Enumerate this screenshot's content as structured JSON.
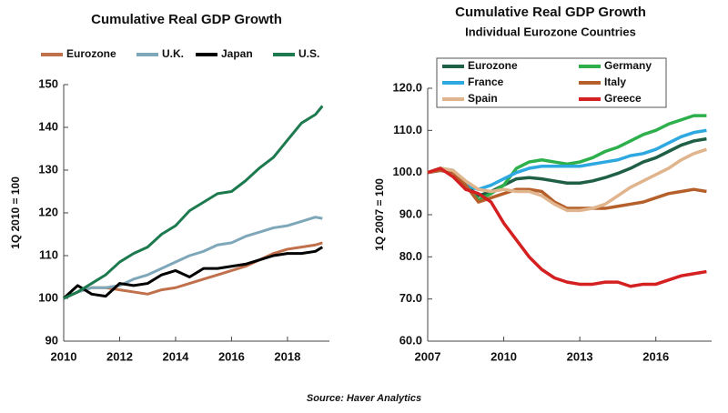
{
  "chart_data": [
    {
      "type": "line",
      "title": "Cumulative Real GDP Growth",
      "ylabel": "1Q 2010 = 100",
      "legend": "top",
      "x": [
        2010,
        2010.5,
        2011,
        2011.5,
        2012,
        2012.5,
        2013,
        2013.5,
        2014,
        2014.5,
        2015,
        2015.5,
        2016,
        2016.5,
        2017,
        2017.5,
        2018,
        2018.5,
        2019,
        2019.25
      ],
      "xlim": [
        2010,
        2019.5
      ],
      "xticks": [
        2010,
        2012,
        2014,
        2016,
        2018
      ],
      "ylim": [
        90,
        150
      ],
      "yticks": [
        90,
        100,
        110,
        120,
        130,
        140,
        150
      ],
      "grid": false,
      "series": [
        {
          "name": "Eurozone",
          "color": "#c0704a",
          "values": [
            100,
            101.5,
            102.5,
            102.5,
            102,
            101.5,
            101,
            102,
            102.5,
            103.5,
            104.5,
            105.5,
            106.5,
            107.5,
            109,
            110.5,
            111.5,
            112,
            112.5,
            113
          ]
        },
        {
          "name": "U.K.",
          "color": "#7fa7ba",
          "values": [
            100,
            101.5,
            102.5,
            102.5,
            103,
            104.5,
            105.5,
            107,
            108.5,
            110,
            111,
            112.5,
            113,
            114.5,
            115.5,
            116.5,
            117,
            118,
            119,
            118.7
          ]
        },
        {
          "name": "Japan",
          "color": "#000000",
          "values": [
            100,
            103,
            101,
            100.5,
            103.5,
            103,
            103.5,
            105.5,
            106.5,
            105,
            107,
            107,
            107.5,
            108,
            109,
            110,
            110.5,
            110.5,
            111,
            112
          ]
        },
        {
          "name": "U.S.",
          "color": "#1d7a4f",
          "values": [
            100,
            101.5,
            103.5,
            105.5,
            108.5,
            110.5,
            112,
            115,
            117,
            120.5,
            122.5,
            124.5,
            125,
            127.5,
            130.5,
            133,
            137,
            141,
            143,
            145
          ]
        }
      ]
    },
    {
      "type": "line",
      "title": "Cumulative Real GDP Growth",
      "subtitle": "Individual Eurozone Countries",
      "ylabel": "1Q 2007 = 100",
      "legend": "top-left",
      "x": [
        2007,
        2007.5,
        2008,
        2008.5,
        2009,
        2009.5,
        2010,
        2010.5,
        2011,
        2011.5,
        2012,
        2012.5,
        2013,
        2013.5,
        2014,
        2014.5,
        2015,
        2015.5,
        2016,
        2016.5,
        2017,
        2017.5,
        2018
      ],
      "xlim": [
        2007,
        2018.2
      ],
      "xticks": [
        2007,
        2010,
        2013,
        2016
      ],
      "ylim": [
        60,
        120
      ],
      "yticks": [
        {
          "value": 60,
          "label": "60.0"
        },
        {
          "value": 70,
          "label": "70.0"
        },
        {
          "value": 80,
          "label": "80.0"
        },
        {
          "value": 90,
          "label": "90.0"
        },
        {
          "value": 100,
          "label": "100.0"
        },
        {
          "value": 110,
          "label": "110.0"
        },
        {
          "value": 120,
          "label": "120.0"
        }
      ],
      "grid": false,
      "series": [
        {
          "name": "Eurozone",
          "color": "#1f5f46",
          "values": [
            100,
            100.8,
            100.5,
            97,
            94.5,
            95.5,
            97,
            98.5,
            98.8,
            98.5,
            98,
            97.5,
            97.5,
            98,
            98.8,
            99.8,
            101,
            102.5,
            103.5,
            105,
            106.5,
            107.5,
            108
          ]
        },
        {
          "name": "Germany",
          "color": "#2db04b",
          "values": [
            100,
            101,
            100.5,
            97,
            93.5,
            95,
            97,
            101,
            102.5,
            103,
            102.5,
            102,
            102.5,
            103.5,
            105,
            106,
            107.5,
            109,
            110,
            111.5,
            112.5,
            113.5,
            113.5
          ]
        },
        {
          "name": "France",
          "color": "#2ea8e0",
          "values": [
            100,
            100.5,
            100,
            97,
            96,
            97,
            98.5,
            100,
            101,
            101.5,
            101.5,
            101.5,
            101.5,
            102,
            102.5,
            103,
            104,
            104.5,
            105.5,
            107,
            108.5,
            109.5,
            110
          ]
        },
        {
          "name": "Italy",
          "color": "#b5602a",
          "values": [
            100,
            100.5,
            100,
            97,
            93,
            94,
            95,
            96,
            96,
            95.5,
            93,
            91.5,
            91.5,
            91.5,
            91.5,
            92,
            92.5,
            93,
            94,
            95,
            95.5,
            96,
            95.5
          ]
        },
        {
          "name": "Spain",
          "color": "#e0b48c",
          "values": [
            100,
            101,
            100.5,
            98,
            96,
            95.5,
            96,
            95.5,
            95.5,
            94.5,
            92.5,
            91,
            91,
            91.5,
            92.5,
            94.5,
            96.5,
            98,
            99.5,
            101,
            103,
            104.5,
            105.5
          ]
        },
        {
          "name": "Greece",
          "color": "#d42020",
          "values": [
            100,
            101,
            99,
            96,
            95,
            93,
            88,
            84,
            80,
            77,
            75,
            74,
            73.5,
            73.5,
            74,
            74,
            73,
            73.5,
            73.5,
            74.5,
            75.5,
            76,
            76.5
          ]
        }
      ]
    }
  ],
  "source": "Source: Haver Analytics"
}
